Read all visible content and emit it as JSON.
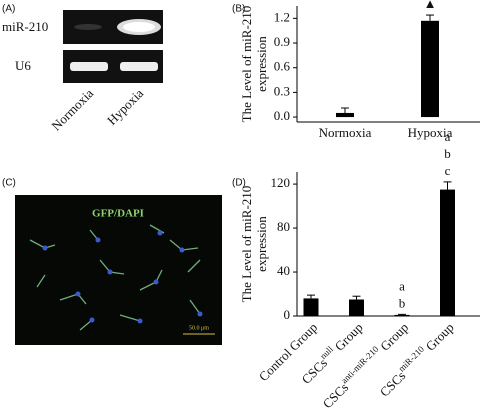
{
  "panels": [
    "(A)",
    "(B)",
    "(C)",
    "(D)"
  ],
  "gel": {
    "rows": [
      "miR-210",
      "U6"
    ],
    "lanes": [
      "Normoxia",
      "Hypoxia"
    ]
  },
  "micrograph": {
    "stain": "GFP/DAPI",
    "scale_bar": "50.0 μm"
  },
  "chart_data": [
    {
      "type": "bar",
      "ylabel": [
        "The Level of miR-210",
        "expression"
      ],
      "categories": [
        [
          "Normoxia"
        ],
        [
          "Hypoxia"
        ]
      ],
      "values": [
        0.05,
        1.17
      ],
      "errors": [
        0.06,
        0.07
      ],
      "annotations": [
        null,
        [
          "▲"
        ]
      ],
      "color": "#000000",
      "ylim": [
        -0.06,
        1.35
      ],
      "yticks": [
        {
          "value": 0,
          "label": "0.0"
        },
        0.3,
        0.6,
        0.9,
        1.2
      ]
    },
    {
      "type": "bar",
      "ylabel": [
        "The Level of miR-210",
        "expression"
      ],
      "categories": [
        [
          "Control Group"
        ],
        [
          "CSCs",
          "null",
          " Group"
        ],
        [
          "CSCs",
          "anti-miR-210",
          " Group"
        ],
        [
          "CSCs",
          "miR-210",
          " Group"
        ]
      ],
      "values": [
        16,
        15,
        1,
        115
      ],
      "errors": [
        3,
        3,
        0.5,
        7
      ],
      "annotations": [
        null,
        null,
        [
          "a",
          "b"
        ],
        [
          "a",
          "b",
          "c"
        ]
      ],
      "color": "#000000",
      "ylim": [
        0,
        131
      ],
      "yticks": [
        0,
        40,
        80,
        120
      ]
    }
  ]
}
